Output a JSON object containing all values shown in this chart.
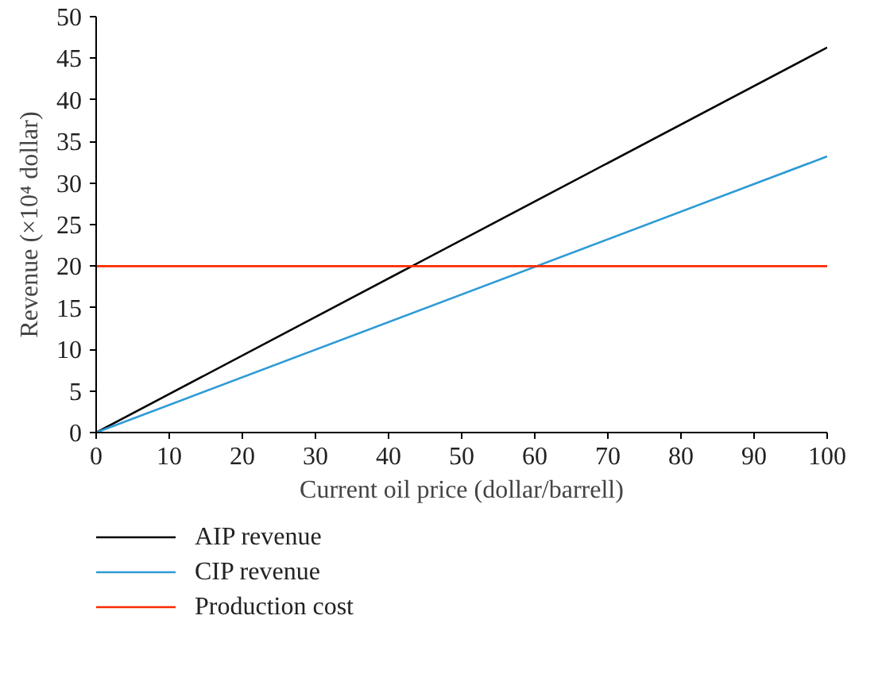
{
  "chart_data": {
    "type": "line",
    "xlabel": "Current oil price (dollar/barrell)",
    "ylabel": "Revenue (×10⁴ dollar)",
    "x": [
      0,
      100
    ],
    "series": [
      {
        "name": "AIP revenue",
        "color": "#000000",
        "values": [
          0,
          46.3
        ]
      },
      {
        "name": "CIP revenue",
        "color": "#2e9bd6",
        "values": [
          0,
          33.2
        ]
      },
      {
        "name": "Production cost",
        "color": "#ff2a00",
        "values": [
          20,
          20
        ]
      }
    ],
    "xlim": [
      0,
      100
    ],
    "ylim": [
      0,
      50
    ],
    "xticks": [
      0,
      10,
      20,
      30,
      40,
      50,
      60,
      70,
      80,
      90,
      100
    ],
    "yticks": [
      0,
      5,
      10,
      15,
      20,
      25,
      30,
      35,
      40,
      45,
      50
    ],
    "grid": false,
    "legend": "bottom",
    "line_style": "solid",
    "marker": "none"
  }
}
